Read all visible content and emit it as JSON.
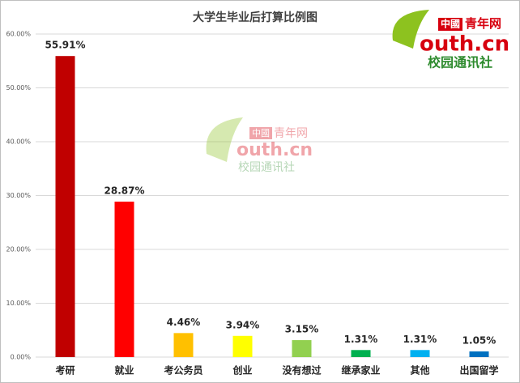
{
  "chart_data": {
    "type": "bar",
    "title": "大学生毕业后打算比例图",
    "categories": [
      "考研",
      "就业",
      "考公务员",
      "创业",
      "没有想过",
      "继承家业",
      "其他",
      "出国留学"
    ],
    "values": [
      55.91,
      28.87,
      4.46,
      3.94,
      3.15,
      1.31,
      1.31,
      1.05
    ],
    "value_labels": [
      "55.91%",
      "28.87%",
      "4.46%",
      "3.94%",
      "3.15%",
      "1.31%",
      "1.31%",
      "1.05%"
    ],
    "colors": [
      "#c00000",
      "#ff0000",
      "#ffc000",
      "#ffff00",
      "#92d050",
      "#00b050",
      "#00b0f0",
      "#0070c0"
    ],
    "ylim": [
      0,
      60
    ],
    "yticks": [
      {
        "value": 0,
        "label": "0.00%"
      },
      {
        "value": 10,
        "label": "10.00%"
      },
      {
        "value": 20,
        "label": "20.00%"
      },
      {
        "value": 30,
        "label": "30.00%"
      },
      {
        "value": 40,
        "label": "40.00%"
      },
      {
        "value": 50,
        "label": "50.00%"
      },
      {
        "value": 60,
        "label": "60.00%"
      }
    ],
    "grid": true
  },
  "logo": {
    "brand": "中國",
    "name": "青年网",
    "domain": "outh.cn",
    "org": "校园通讯社"
  }
}
